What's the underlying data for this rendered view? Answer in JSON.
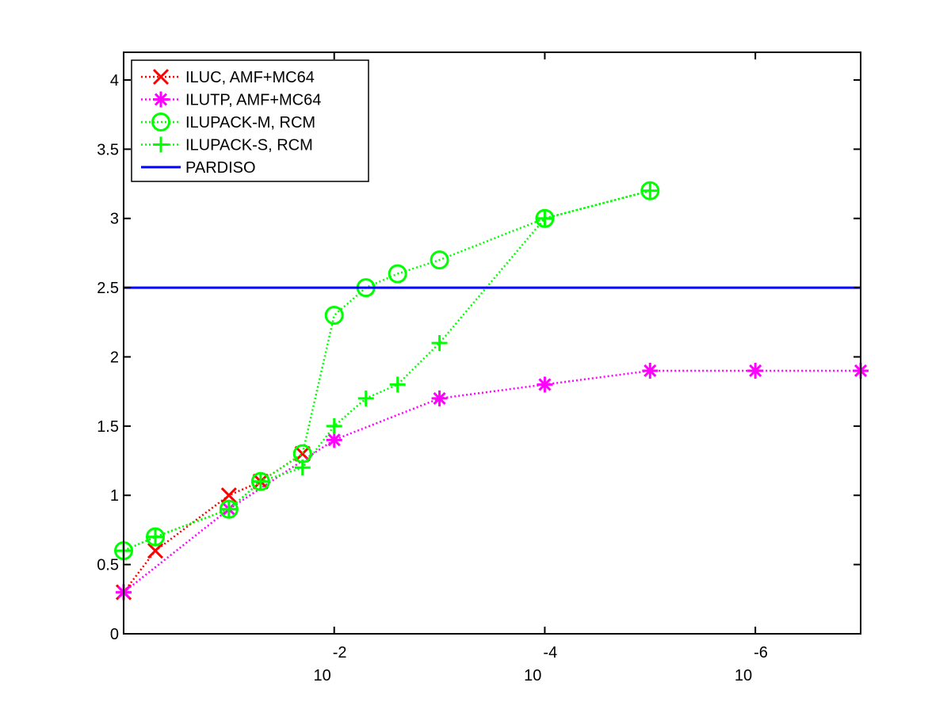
{
  "chart_data": {
    "type": "line",
    "title": "",
    "xlabel": "",
    "ylabel": "",
    "xscale": "log",
    "x_reversed": true,
    "xlim": [
      1,
      1e-07
    ],
    "ylim": [
      0,
      4.2
    ],
    "grid": false,
    "legend_position": "top-left",
    "yticks": [
      {
        "value": 0,
        "label": "0"
      },
      {
        "value": 0.5,
        "label": "0.5"
      },
      {
        "value": 1,
        "label": "1"
      },
      {
        "value": 1.5,
        "label": "1.5"
      },
      {
        "value": 2,
        "label": "2"
      },
      {
        "value": 2.5,
        "label": "2.5"
      },
      {
        "value": 3,
        "label": "3"
      },
      {
        "value": 3.5,
        "label": "3.5"
      },
      {
        "value": 4,
        "label": "4"
      }
    ],
    "xticks": [
      {
        "value": 0.01,
        "base": "10",
        "exponent": "-2"
      },
      {
        "value": 0.0001,
        "base": "10",
        "exponent": "-4"
      },
      {
        "value": 1e-06,
        "base": "10",
        "exponent": "-6"
      }
    ],
    "series": [
      {
        "name": "ILUC, AMF+MC64",
        "color": "#ff0000",
        "marker": "x",
        "x": [
          1,
          0.5,
          0.1,
          0.05,
          0.02
        ],
        "y": [
          0.3,
          0.6,
          1.0,
          1.1,
          1.3
        ]
      },
      {
        "name": "ILUTP, AMF+MC64",
        "color": "#ff00ff",
        "marker": "asterisk",
        "x": [
          1,
          0.1,
          0.01,
          0.001,
          0.0001,
          1e-05,
          1e-06,
          1e-07
        ],
        "y": [
          0.3,
          0.9,
          1.4,
          1.7,
          1.8,
          1.9,
          1.9,
          1.9
        ]
      },
      {
        "name": "ILUPACK-M, RCM",
        "color": "#00ff00",
        "marker": "circle",
        "x": [
          1,
          0.5,
          0.1,
          0.05,
          0.02,
          0.01,
          0.005,
          0.0025,
          0.001,
          0.0001,
          1e-05
        ],
        "y": [
          0.6,
          0.7,
          0.9,
          1.1,
          1.3,
          2.3,
          2.5,
          2.6,
          2.7,
          3.0,
          3.2
        ]
      },
      {
        "name": "ILUPACK-S, RCM",
        "color": "#00ff00",
        "marker": "plus",
        "x": [
          1,
          0.5,
          0.1,
          0.05,
          0.02,
          0.01,
          0.005,
          0.0025,
          0.001,
          0.0001,
          1e-05
        ],
        "y": [
          0.6,
          0.7,
          0.9,
          1.1,
          1.2,
          1.5,
          1.7,
          1.8,
          2.1,
          3.0,
          3.2
        ]
      },
      {
        "name": "PARDISO",
        "color": "#0000ff",
        "marker": "none",
        "line": "solid",
        "x": [
          1,
          1e-07
        ],
        "y": [
          2.5,
          2.5
        ]
      }
    ]
  }
}
